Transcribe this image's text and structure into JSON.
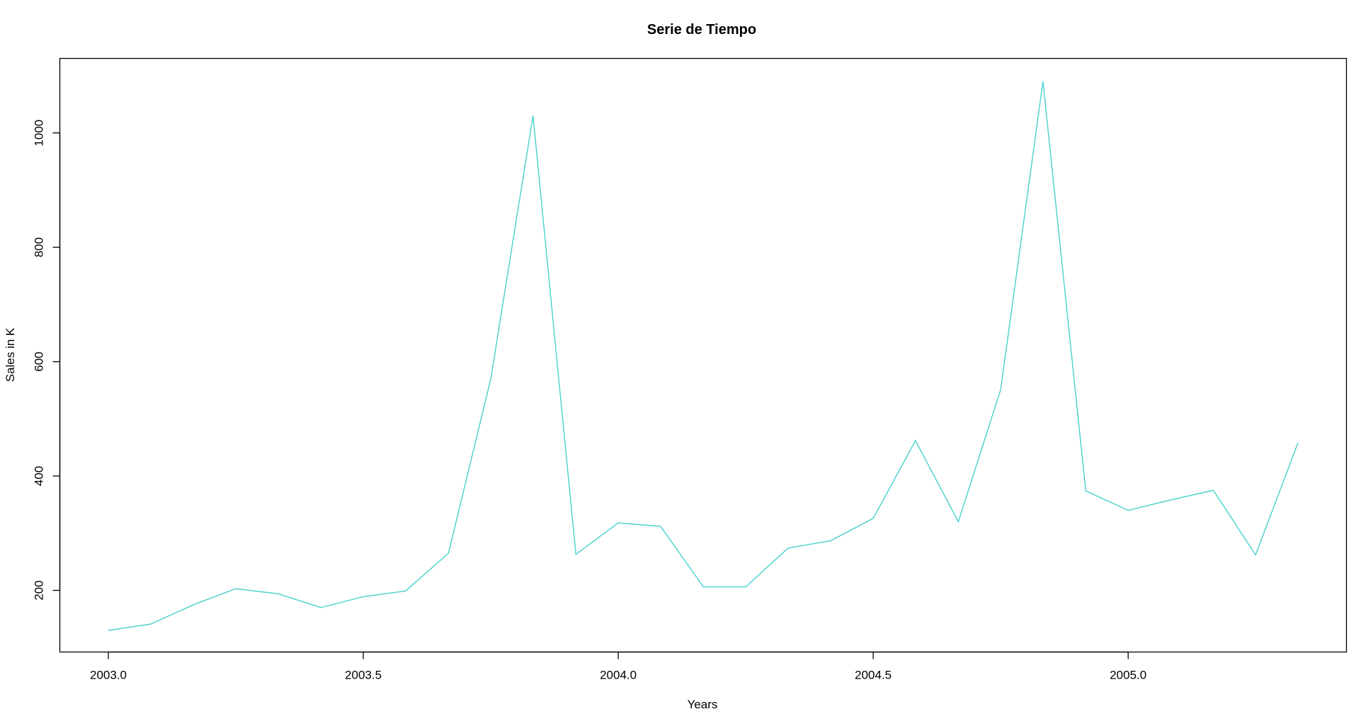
{
  "chart_data": {
    "type": "line",
    "title": "Serie de Tiempo",
    "xlabel": "Years",
    "ylabel": "Sales in K",
    "xlim": [
      2003.0,
      2005.333
    ],
    "ylim": [
      130,
      1090
    ],
    "x_ticks": [
      2003.0,
      2003.5,
      2004.0,
      2004.5,
      2005.0
    ],
    "x_tick_labels": [
      "2003.0",
      "2003.5",
      "2004.0",
      "2004.5",
      "2005.0"
    ],
    "y_ticks": [
      200,
      400,
      600,
      800,
      1000
    ],
    "y_tick_labels": [
      "200",
      "400",
      "600",
      "800",
      "1000"
    ],
    "grid": false,
    "legend": "none",
    "series": [
      {
        "color": "#48D1CC",
        "x": [
          2003.0,
          2003.083,
          2003.167,
          2003.25,
          2003.333,
          2003.417,
          2003.5,
          2003.583,
          2003.667,
          2003.75,
          2003.833,
          2003.917,
          2004.0,
          2004.083,
          2004.167,
          2004.25,
          2004.333,
          2004.417,
          2004.5,
          2004.583,
          2004.667,
          2004.75,
          2004.833,
          2004.917,
          2005.0,
          2005.083,
          2005.167,
          2005.25,
          2005.333
        ],
        "values": [
          130,
          141,
          175,
          203,
          194,
          170,
          189,
          199,
          265,
          570,
          1030,
          263,
          318,
          312,
          206,
          206,
          274,
          287,
          326,
          462,
          320,
          551,
          1090,
          374,
          340,
          358,
          375,
          262,
          458
        ]
      }
    ]
  }
}
